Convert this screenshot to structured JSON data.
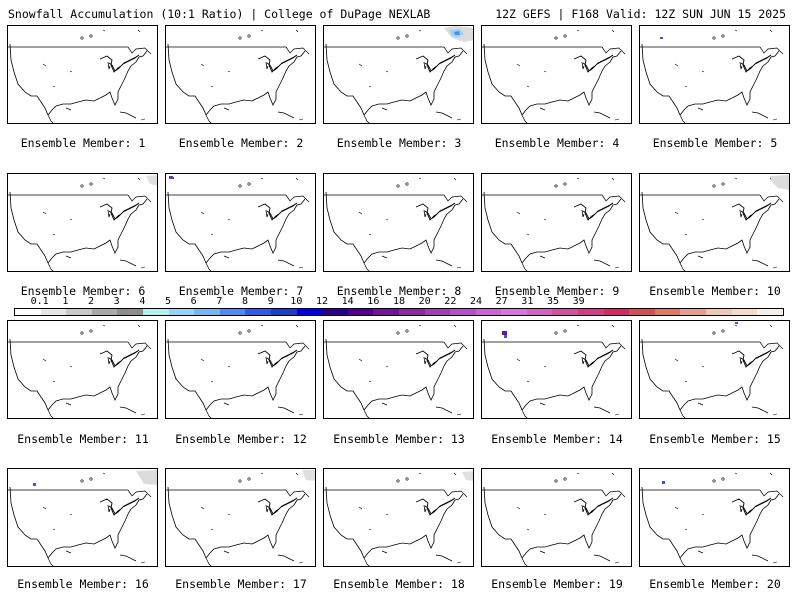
{
  "header": {
    "left": "Snowfall Accumulation (10:1 Ratio) | College of DuPage NEXLAB",
    "right": "12Z GEFS | F168 Valid: 12Z SUN JUN 15 2025"
  },
  "members": [
    {
      "label": "Ensemble Member: 1",
      "snow": "none"
    },
    {
      "label": "Ensemble Member: 2",
      "snow": "none"
    },
    {
      "label": "Ensemble Member: 3",
      "snow": "light gray and blue patch over northeast Canada"
    },
    {
      "label": "Ensemble Member: 4",
      "snow": "none"
    },
    {
      "label": "Ensemble Member: 5",
      "snow": "small blue speck over Canadian Rockies"
    },
    {
      "label": "Ensemble Member: 6",
      "snow": "light gray patch over northeast Canada"
    },
    {
      "label": "Ensemble Member: 7",
      "snow": "purple speck over British Columbia"
    },
    {
      "label": "Ensemble Member: 8",
      "snow": "none"
    },
    {
      "label": "Ensemble Member: 9",
      "snow": "none"
    },
    {
      "label": "Ensemble Member: 10",
      "snow": "light gray patch over northeast Canada"
    },
    {
      "label": "Ensemble Member: 11",
      "snow": "none"
    },
    {
      "label": "Ensemble Member: 12",
      "snow": "none"
    },
    {
      "label": "Ensemble Member: 13",
      "snow": "none"
    },
    {
      "label": "Ensemble Member: 14",
      "snow": "purple speck over Pacific Northwest"
    },
    {
      "label": "Ensemble Member: 15",
      "snow": "small blue speck over Canadian Rockies"
    },
    {
      "label": "Ensemble Member: 16",
      "snow": "blue speck over Pacific Northwest; light gray patch over northeast Canada"
    },
    {
      "label": "Ensemble Member: 17",
      "snow": "light gray patch over northeast Canada"
    },
    {
      "label": "Ensemble Member: 18",
      "snow": "light gray patch over northeast Canada"
    },
    {
      "label": "Ensemble Member: 19",
      "snow": "none"
    },
    {
      "label": "Ensemble Member: 20",
      "snow": "small blue speck over Canadian Rockies"
    }
  ],
  "colorbar": {
    "labels": [
      "0.1",
      "1",
      "2",
      "3",
      "4",
      "5",
      "6",
      "7",
      "8",
      "9",
      "10",
      "12",
      "14",
      "16",
      "18",
      "20",
      "22",
      "24",
      "27",
      "31",
      "35",
      "39"
    ],
    "colors": [
      "#ffffff",
      "#e6e6e6",
      "#c8c8c8",
      "#aaaaaa",
      "#8c8c8c",
      "#b4f0f0",
      "#96d2fa",
      "#78b4f0",
      "#508cf0",
      "#325ae6",
      "#1e3cc8",
      "#0000e6",
      "#28008c",
      "#50008c",
      "#6e1496",
      "#8c28a0",
      "#a03cb4",
      "#b450c8",
      "#c864d2",
      "#d278dc",
      "#d264be",
      "#d250a0",
      "#d23c82",
      "#d22864",
      "#d25050",
      "#dc7864",
      "#e6a08c",
      "#f0c8b4",
      "#f5dcc8",
      "#faf0e6"
    ]
  }
}
